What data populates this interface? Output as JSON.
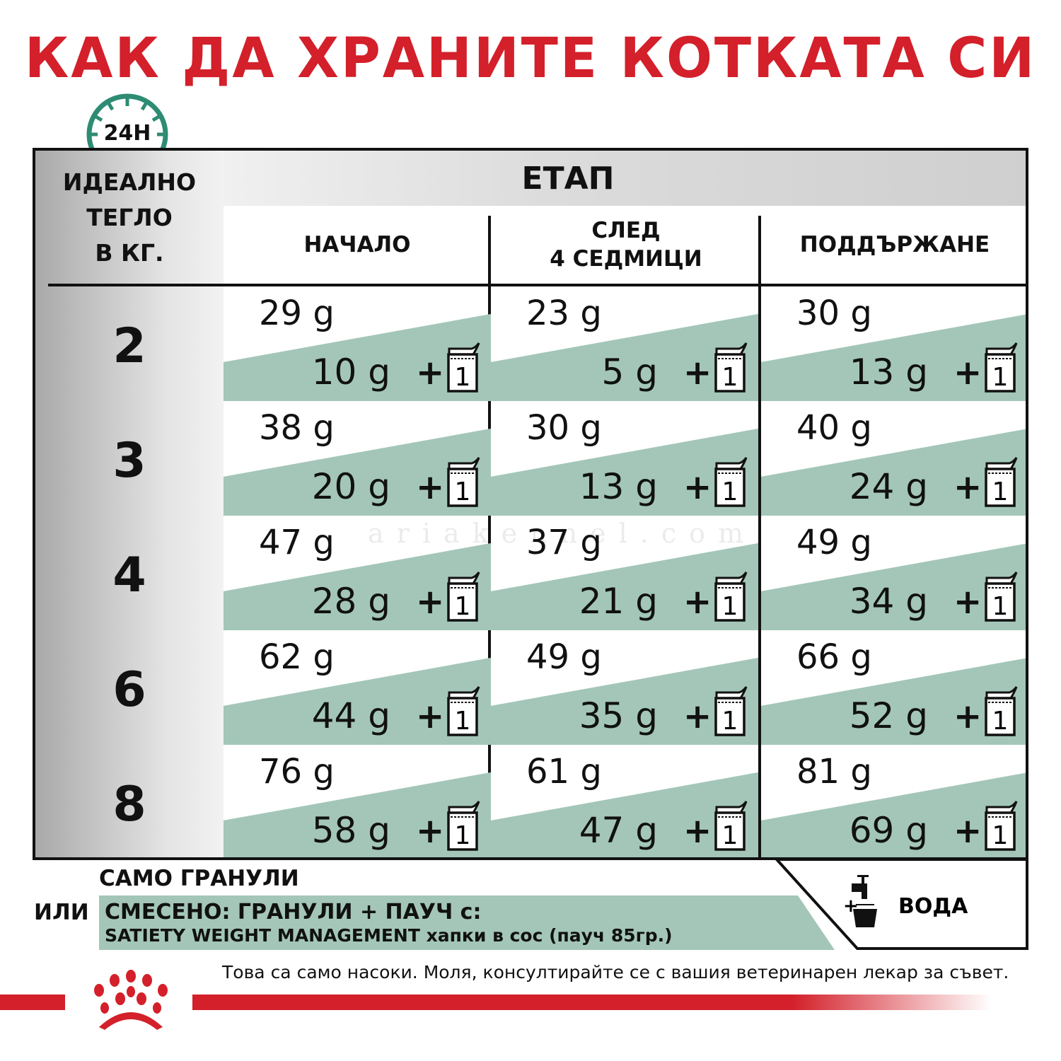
{
  "title": "КАК ДА ХРАНИТЕ КОТКАТА СИ",
  "clock_label": "24H",
  "table": {
    "stage_header": "ЕТАП",
    "weight_header": [
      "ИДЕАЛНО",
      "ТЕГЛО",
      "В КГ."
    ],
    "columns": [
      {
        "label": "НАЧАЛО"
      },
      {
        "label": "СЛЕД\n4 СЕДМИЦИ",
        "line1": "СЛЕД",
        "line2": "4 СЕДМИЦИ"
      },
      {
        "label": "ПОДДЪРЖАНЕ"
      }
    ],
    "rows": [
      {
        "kg": "2",
        "cells": [
          {
            "dry": "29 g",
            "wet": "10 g"
          },
          {
            "dry": "23 g",
            "wet": "5 g"
          },
          {
            "dry": "30 g",
            "wet": "13 g"
          }
        ]
      },
      {
        "kg": "3",
        "cells": [
          {
            "dry": "38 g",
            "wet": "20 g"
          },
          {
            "dry": "30 g",
            "wet": "13 g"
          },
          {
            "dry": "40 g",
            "wet": "24 g"
          }
        ]
      },
      {
        "kg": "4",
        "cells": [
          {
            "dry": "47 g",
            "wet": "28 g"
          },
          {
            "dry": "37 g",
            "wet": "21 g"
          },
          {
            "dry": "49 g",
            "wet": "34 g"
          }
        ]
      },
      {
        "kg": "6",
        "cells": [
          {
            "dry": "62 g",
            "wet": "44 g"
          },
          {
            "dry": "49 g",
            "wet": "35 g"
          },
          {
            "dry": "66 g",
            "wet": "52 g"
          }
        ]
      },
      {
        "kg": "8",
        "cells": [
          {
            "dry": "76 g",
            "wet": "58 g"
          },
          {
            "dry": "61 g",
            "wet": "47 g"
          },
          {
            "dry": "81 g",
            "wet": "69 g"
          }
        ]
      }
    ],
    "plus": "+",
    "pouch_count": "1"
  },
  "legend": {
    "dry_only": "САМО ГРАНУЛИ",
    "or": "ИЛИ",
    "mixed": "СМЕСЕНО: ГРАНУЛИ + ПАУЧ с:",
    "product_name": "SATIETY WEIGHT MANAGEMENT",
    "product_desc": "хапки в сос (пауч 85гр.)",
    "water_plus": "+",
    "water": "ВОДА"
  },
  "disclaimer": "Това са само насоки. Моля, консултирайте се с вашия ветеринарен лекар за съвет.",
  "watermark": "ariakennel.com",
  "colors": {
    "brand_red": "#d3202a",
    "teal": "#a3c6b8",
    "clock_green": "#2e8b74"
  }
}
